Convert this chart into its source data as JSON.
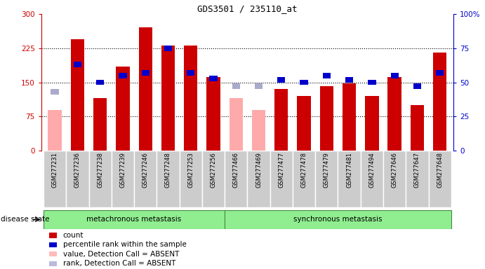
{
  "title": "GDS3501 / 235110_at",
  "samples": [
    "GSM277231",
    "GSM277236",
    "GSM277238",
    "GSM277239",
    "GSM277246",
    "GSM277248",
    "GSM277253",
    "GSM277256",
    "GSM277466",
    "GSM277469",
    "GSM277477",
    "GSM277478",
    "GSM277479",
    "GSM277481",
    "GSM277494",
    "GSM277646",
    "GSM277647",
    "GSM277648"
  ],
  "bar_values": [
    null,
    245,
    115,
    185,
    270,
    230,
    230,
    162,
    null,
    null,
    135,
    120,
    142,
    148,
    120,
    162,
    100,
    215
  ],
  "bar_absent": [
    90,
    null,
    null,
    null,
    null,
    null,
    null,
    null,
    115,
    90,
    null,
    null,
    null,
    null,
    null,
    null,
    null,
    null
  ],
  "rank_values": [
    43,
    63,
    50,
    55,
    57,
    75,
    57,
    53,
    null,
    null,
    52,
    50,
    55,
    52,
    50,
    55,
    47,
    57
  ],
  "rank_absent": [
    43,
    null,
    null,
    null,
    null,
    null,
    null,
    null,
    47,
    47,
    null,
    null,
    null,
    null,
    null,
    null,
    null,
    null
  ],
  "meta_count": 8,
  "sync_count": 10,
  "bar_color": "#cc0000",
  "absent_bar_color": "#ffaaaa",
  "rank_color": "#0000cc",
  "absent_rank_color": "#aaaacc",
  "meta_bg": "#90ee90",
  "sync_bg": "#90ee90",
  "label_bg": "#cccccc",
  "ylim_left": [
    0,
    300
  ],
  "ylim_right": [
    0,
    100
  ],
  "yticks_left": [
    0,
    75,
    150,
    225,
    300
  ],
  "yticks_right": [
    0,
    25,
    50,
    75,
    100
  ],
  "ytick_labels_left": [
    "0",
    "75",
    "150",
    "225",
    "300"
  ],
  "ytick_labels_right": [
    "0",
    "25",
    "50",
    "75",
    "100%"
  ],
  "disease_state_label": "disease state",
  "meta_label": "metachronous metastasis",
  "sync_label": "synchronous metastasis",
  "legend_items": [
    {
      "label": "count",
      "color": "#cc0000"
    },
    {
      "label": "percentile rank within the sample",
      "color": "#0000cc"
    },
    {
      "label": "value, Detection Call = ABSENT",
      "color": "#ffbbbb"
    },
    {
      "label": "rank, Detection Call = ABSENT",
      "color": "#bbbbdd"
    }
  ],
  "background_color": "#ffffff",
  "plot_bg": "#ffffff"
}
